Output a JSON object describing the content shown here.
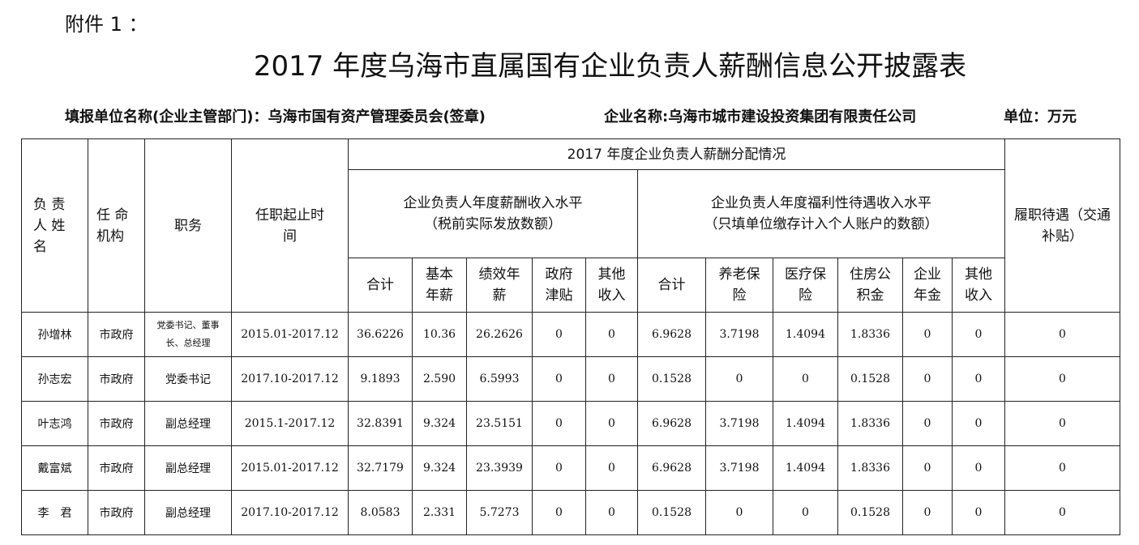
{
  "attachment": "附件 1 ：",
  "title": "2017 年度乌海市直属国有企业负责人薪酬信息公开披露表",
  "meta": {
    "unit_reporting": "填报单位名称(企业主管部门)：乌海市国有资产管理委员会(签章)",
    "company": "企业名称:乌海市城市建设投资集团有限责任公司",
    "unit": "单位：万元"
  },
  "headers": {
    "name": "负 责 人 姓 名",
    "appointer": "任 命 机构",
    "position": "职务",
    "term": "任职起止时间",
    "group": "2017 年度企业负责人薪酬分配情况",
    "salary_group": "企业负责人年度薪酬收入水平",
    "salary_note": "（税前实际发放数额）",
    "welfare_group": "企业负责人年度福利性待遇收入水平",
    "welfare_note": "（只填单位缴存计入个人账户的数额）",
    "duty": "履职待遇（交通补贴）",
    "salary_cols": [
      "合计",
      "基本年薪",
      "绩效年薪",
      "政府津贴",
      "其他收入"
    ],
    "welfare_cols": [
      "合计",
      "养老保险",
      "医疗保险",
      "住房公积金",
      "企业年金",
      "其他收入"
    ]
  },
  "rows": [
    [
      "孙增林",
      "市政府",
      "党委书记、董事长、总经理",
      "2015.01-2017.12",
      "36.6226",
      "10.36",
      "26.2626",
      "0",
      "0",
      "6.9628",
      "3.7198",
      "1.4094",
      "1.8336",
      "0",
      "0",
      "0"
    ],
    [
      "孙志宏",
      "市政府",
      "党委书记",
      "2017.10-2017.12",
      "9.1893",
      "2.590",
      "6.5993",
      "0",
      "0",
      "0.1528",
      "0",
      "0",
      "0.1528",
      "0",
      "0",
      "0"
    ],
    [
      "叶志鸿",
      "市政府",
      "副总经理",
      "2015.1-2017.12",
      "32.8391",
      "9.324",
      "23.5151",
      "0",
      "0",
      "6.9628",
      "3.7198",
      "1.4094",
      "1.8336",
      "0",
      "0",
      "0"
    ],
    [
      "戴富斌",
      "市政府",
      "副总经理",
      "2015.01-2017.12",
      "32.7179",
      "9.324",
      "23.3939",
      "0",
      "0",
      "6.9628",
      "3.7198",
      "1.4094",
      "1.8336",
      "0",
      "0",
      "0"
    ],
    [
      "李　君",
      "市政府",
      "副总经理",
      "2017.10-2017.12",
      "8.0583",
      "2.331",
      "5.7273",
      "0",
      "0",
      "0.1528",
      "0",
      "0",
      "0.1528",
      "0",
      "0",
      "0"
    ]
  ]
}
